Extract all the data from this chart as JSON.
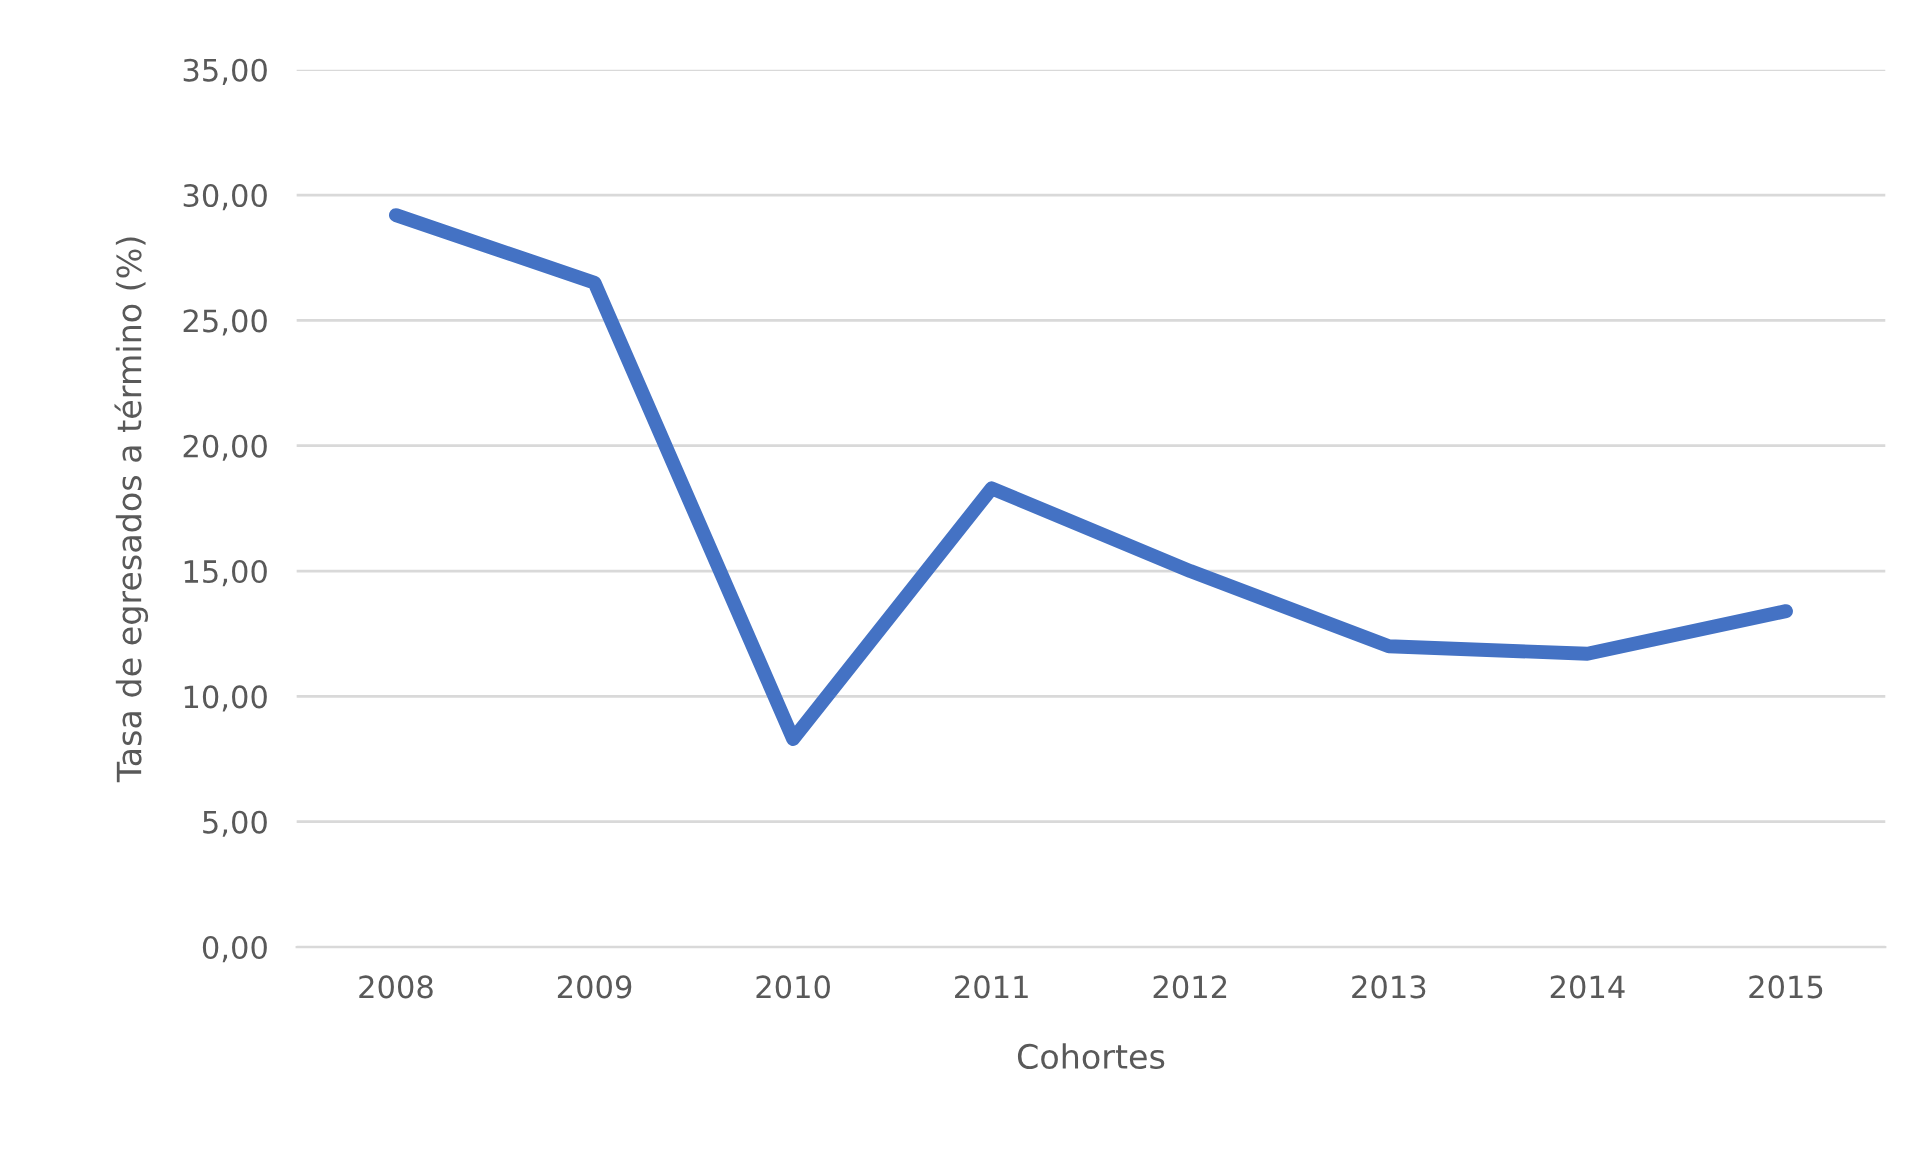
{
  "chart_data": {
    "type": "line",
    "xlabel": "Cohortes",
    "ylabel": "Tasa de egresados a término (%)",
    "categories": [
      "2008",
      "2009",
      "2010",
      "2011",
      "2012",
      "2013",
      "2014",
      "2015"
    ],
    "series": [
      {
        "color": "#4472c4",
        "values": [
          29.2,
          26.5,
          8.3,
          18.3,
          15.0,
          12.0,
          11.7,
          13.4
        ]
      }
    ],
    "ylim": [
      0,
      35
    ],
    "yticks": [
      {
        "value": 0,
        "label": "0,00"
      },
      {
        "value": 5,
        "label": "5,00"
      },
      {
        "value": 10,
        "label": "10,00"
      },
      {
        "value": 15,
        "label": "15,00"
      },
      {
        "value": 20,
        "label": "20,00"
      },
      {
        "value": 25,
        "label": "25,00"
      },
      {
        "value": 30,
        "label": "30,00"
      },
      {
        "value": 35,
        "label": "35,00"
      }
    ],
    "grid": "y",
    "marker": "none",
    "line_style": "solid"
  }
}
